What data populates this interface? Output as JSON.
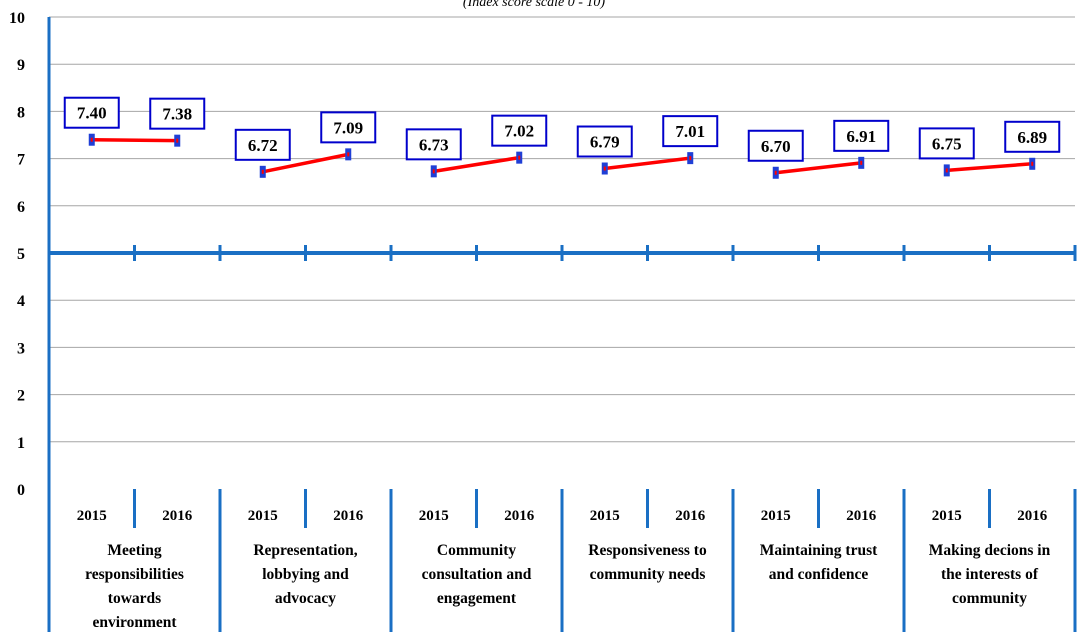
{
  "chart_data": {
    "type": "line",
    "subtitle": "(Index score scale 0 - 10)",
    "ylim": [
      0,
      10
    ],
    "yticks": [
      "0",
      "1",
      "2",
      "3",
      "4",
      "5",
      "6",
      "7",
      "8",
      "9",
      "10"
    ],
    "reference_line": 5,
    "colors": {
      "line": "#ff0000",
      "marker": "#1f3fd6",
      "reference": "#1a6fc4",
      "label_border": "#0000cc",
      "grid": "#a6a6a6"
    },
    "groups": [
      {
        "name": "Meeting responsibilities towards environment",
        "lines": [
          "Meeting",
          "responsibilities",
          "towards",
          "environment"
        ],
        "points": [
          {
            "x": "2015",
            "y": 7.4,
            "label": "7.40"
          },
          {
            "x": "2016",
            "y": 7.38,
            "label": "7.38"
          }
        ]
      },
      {
        "name": "Representation, lobbying and advocacy",
        "lines": [
          "Representation,",
          "lobbying and",
          "advocacy"
        ],
        "points": [
          {
            "x": "2015",
            "y": 6.72,
            "label": "6.72"
          },
          {
            "x": "2016",
            "y": 7.09,
            "label": "7.09"
          }
        ]
      },
      {
        "name": "Community consultation and engagement",
        "lines": [
          "Community",
          "consultation and",
          "engagement"
        ],
        "points": [
          {
            "x": "2015",
            "y": 6.73,
            "label": "6.73"
          },
          {
            "x": "2016",
            "y": 7.02,
            "label": "7.02"
          }
        ]
      },
      {
        "name": "Responsiveness to community needs",
        "lines": [
          "Responsiveness to",
          "community needs"
        ],
        "points": [
          {
            "x": "2015",
            "y": 6.79,
            "label": "6.79"
          },
          {
            "x": "2016",
            "y": 7.01,
            "label": "7.01"
          }
        ]
      },
      {
        "name": "Maintaining trust and confidence",
        "lines": [
          "Maintaining trust",
          "and confidence"
        ],
        "points": [
          {
            "x": "2015",
            "y": 6.7,
            "label": "6.70"
          },
          {
            "x": "2016",
            "y": 6.91,
            "label": "6.91"
          }
        ]
      },
      {
        "name": "Making decions in the interests of community",
        "lines": [
          "Making decions in",
          "the interests of",
          "community"
        ],
        "points": [
          {
            "x": "2015",
            "y": 6.75,
            "label": "6.75"
          },
          {
            "x": "2016",
            "y": 6.89,
            "label": "6.89"
          }
        ]
      }
    ]
  }
}
